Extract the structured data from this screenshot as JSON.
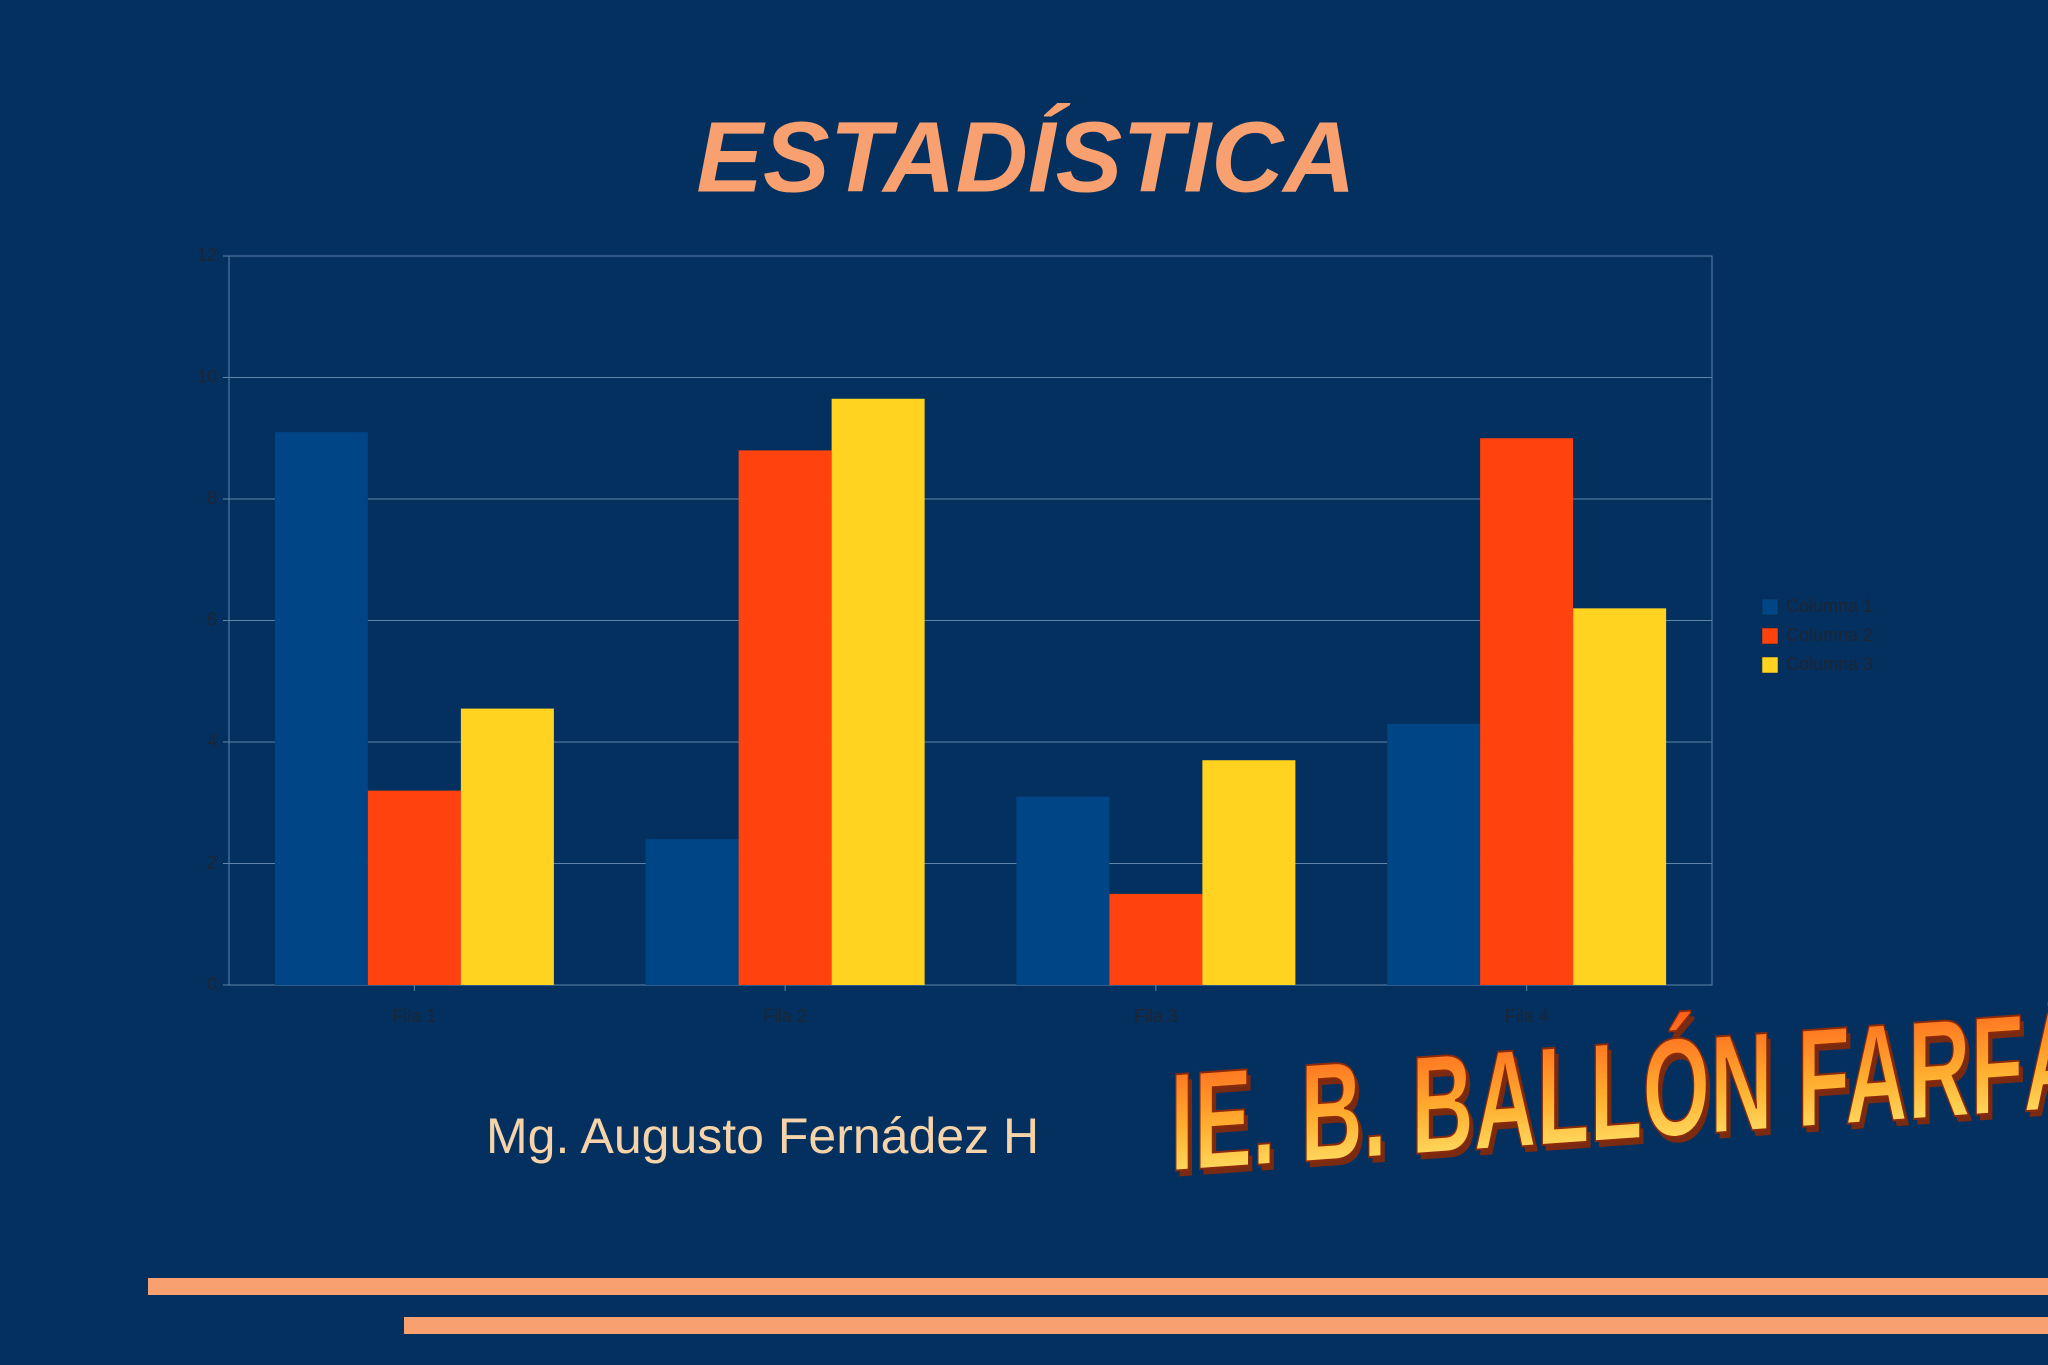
{
  "chart_data": {
    "type": "bar",
    "title": "ESTADÍSTICA",
    "categories": [
      "Fila 1",
      "Fila 2",
      "Fila 3",
      "Fila 4"
    ],
    "series": [
      {
        "name": "Columna 1",
        "color": "#004586",
        "values": [
          9.1,
          2.4,
          3.1,
          4.3
        ]
      },
      {
        "name": "Columna 2",
        "color": "#ff420e",
        "values": [
          3.2,
          8.8,
          1.5,
          9.0
        ]
      },
      {
        "name": "Columna 3",
        "color": "#ffd320",
        "values": [
          4.55,
          9.65,
          3.7,
          6.2
        ]
      }
    ],
    "ylim": [
      0,
      12
    ],
    "yticks": [
      0,
      2,
      4,
      6,
      8,
      10,
      12
    ],
    "grid": true,
    "legend": "right"
  },
  "author": "Mg. Augusto Fernádez H",
  "institution": "IE. B. BALLÓN FARFÁN"
}
